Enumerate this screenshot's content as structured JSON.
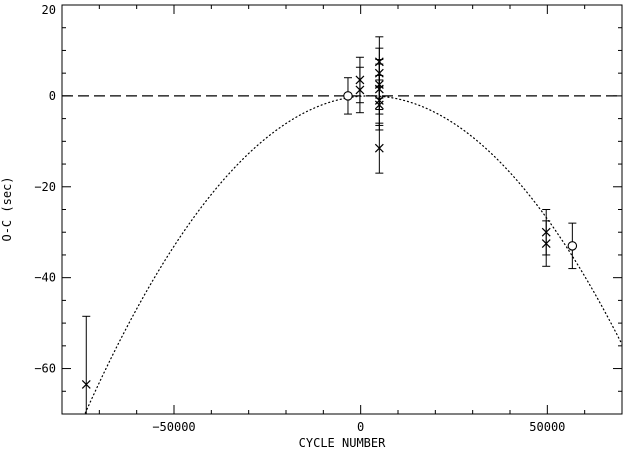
{
  "chart_data": {
    "type": "scatter",
    "title": "",
    "xlabel": "CYCLE NUMBER",
    "ylabel": "O-C (sec)",
    "xlim": [
      -80000,
      70000
    ],
    "ylim": [
      -70,
      20
    ],
    "xticks": [
      -50000,
      0,
      50000
    ],
    "yticks": [
      20,
      0,
      -20,
      -40,
      -60
    ],
    "xtick_labels": [
      "−50000",
      "0",
      "50000"
    ],
    "ytick_labels": [
      "20",
      "0",
      "−20",
      "−40",
      "−60"
    ],
    "grid": false,
    "legend": "none",
    "reference_line": {
      "y": 0,
      "style": "dashed"
    },
    "fit_curve": {
      "style": "dotted",
      "model": "quadratic",
      "vertex_x": 2500,
      "vertex_y": 0,
      "curvature": -1.2e-08
    },
    "series": [
      {
        "marker": "cross",
        "points": [
          {
            "x": -73500,
            "y": -63.5,
            "err_low": 9.5,
            "err_high": 15
          },
          {
            "x": -200,
            "y": 3.5,
            "err_low": 5,
            "err_high": 5
          },
          {
            "x": -200,
            "y": 1.3,
            "err_low": 5,
            "err_high": 5
          },
          {
            "x": 5000,
            "y": 7.5,
            "err_low": 5.5,
            "err_high": 5.5
          },
          {
            "x": 5000,
            "y": 5.0,
            "err_low": 5.5,
            "err_high": 5.5
          },
          {
            "x": 5000,
            "y": 2.5,
            "err_low": 5.5,
            "err_high": 5.5
          },
          {
            "x": 5000,
            "y": 1.5,
            "err_low": 5.5,
            "err_high": 5.5
          },
          {
            "x": 5000,
            "y": -1.0,
            "err_low": 5.5,
            "err_high": 5.5
          },
          {
            "x": 5000,
            "y": -2.0,
            "err_low": 5.5,
            "err_high": 5.5
          },
          {
            "x": 5000,
            "y": -11.5,
            "err_low": 5.5,
            "err_high": 5.5
          },
          {
            "x": 49700,
            "y": -30.0,
            "err_low": 5,
            "err_high": 5
          },
          {
            "x": 49700,
            "y": -32.5,
            "err_low": 5,
            "err_high": 5
          }
        ]
      },
      {
        "marker": "open-circle",
        "points": [
          {
            "x": -3400,
            "y": 0.0,
            "err_low": 4,
            "err_high": 4
          },
          {
            "x": 56700,
            "y": -33.0,
            "err_low": 5,
            "err_high": 5
          }
        ]
      }
    ]
  }
}
